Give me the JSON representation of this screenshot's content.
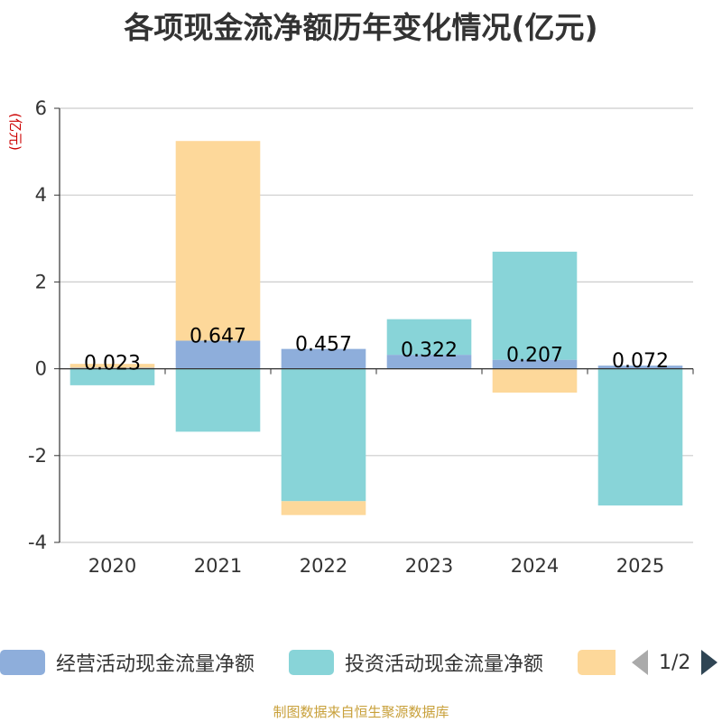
{
  "chart_data": {
    "type": "bar",
    "stacked": true,
    "title": "各项现金流净额历年变化情况(亿元)",
    "ylabel": "(亿元)",
    "xlabel": "",
    "ylim": [
      -4,
      6
    ],
    "yticks": [
      -4,
      -2,
      0,
      2,
      4,
      6
    ],
    "categories": [
      "2020",
      "2021",
      "2022",
      "2023",
      "2024",
      "2025"
    ],
    "series": [
      {
        "name": "经营活动现金流量净额",
        "color": "#8eaedb",
        "values": [
          0.023,
          0.647,
          0.457,
          0.322,
          0.207,
          0.072
        ],
        "labels": [
          "0.023",
          "0.647",
          "0.457",
          "0.322",
          "0.207",
          "0.072"
        ]
      },
      {
        "name": "投资活动现金流量净额",
        "color": "#88d4d8",
        "values": [
          -0.38,
          -1.45,
          -3.05,
          0.82,
          2.49,
          -3.15
        ]
      },
      {
        "name": "",
        "color": "#fdd89a",
        "values": [
          0.09,
          4.6,
          -0.32,
          0.0,
          -0.55,
          0.0
        ]
      }
    ],
    "legend": {
      "position": "bottom",
      "page": "1/2"
    }
  },
  "source_text": "制图数据来自恒生聚源数据库"
}
